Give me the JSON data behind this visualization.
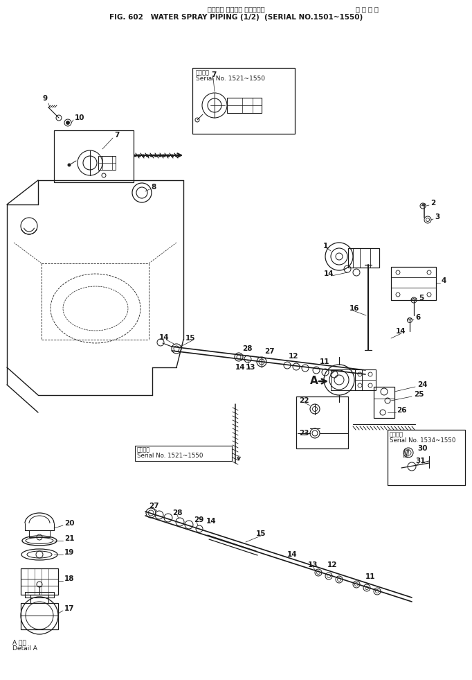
{
  "title_jp": "ウォータ スプレイ パイピング",
  "title_serial_jp": "適 用 号 機",
  "title_en": "FIG. 602   WATER SPRAY PIPING (1/2)  (SERIAL NO.1501~1550)",
  "bg_color": "#ffffff",
  "line_color": "#1a1a1a",
  "text_color": "#1a1a1a",
  "fig_width": 6.82,
  "fig_height": 9.81,
  "dpi": 100
}
